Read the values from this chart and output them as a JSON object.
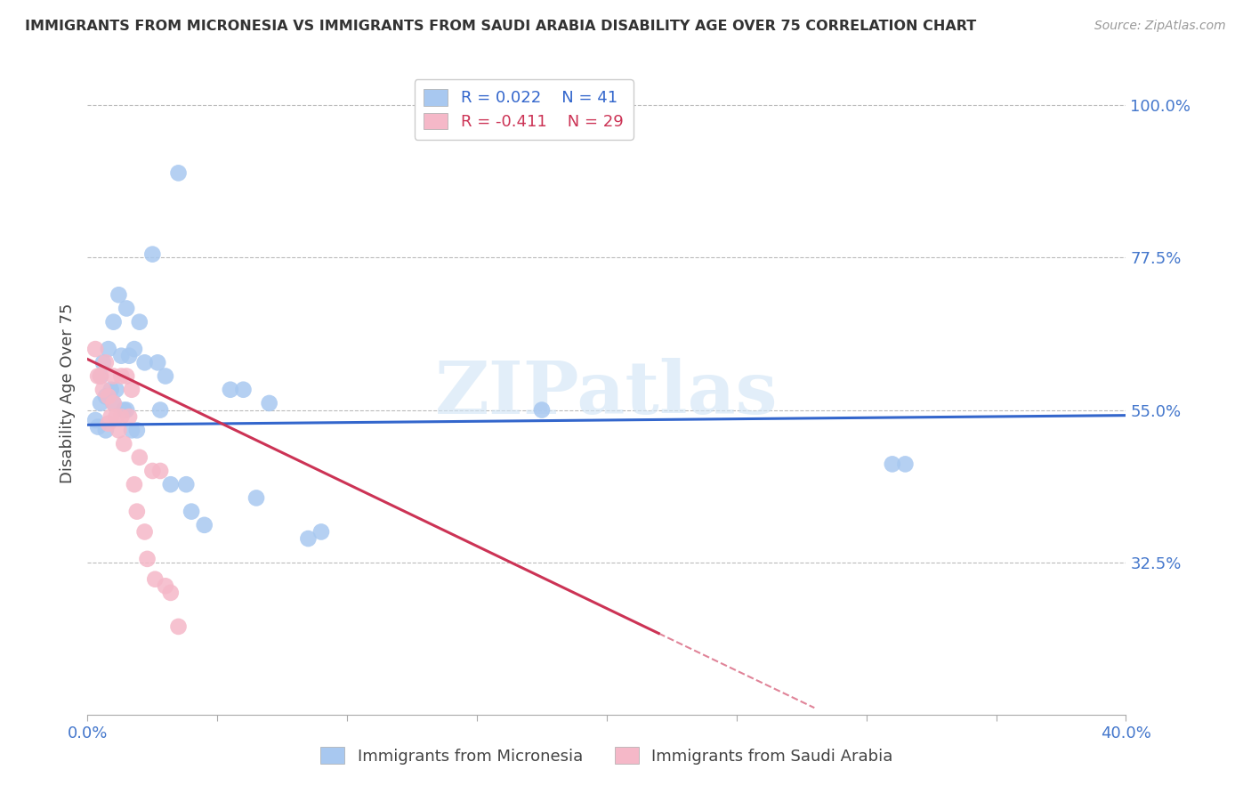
{
  "title": "IMMIGRANTS FROM MICRONESIA VS IMMIGRANTS FROM SAUDI ARABIA DISABILITY AGE OVER 75 CORRELATION CHART",
  "source": "Source: ZipAtlas.com",
  "ylabel": "Disability Age Over 75",
  "ytick_labels": [
    "100.0%",
    "77.5%",
    "55.0%",
    "32.5%"
  ],
  "ytick_values": [
    1.0,
    0.775,
    0.55,
    0.325
  ],
  "xlim": [
    0.0,
    0.4
  ],
  "ylim": [
    0.1,
    1.05
  ],
  "legend_blue_r": "R = 0.022",
  "legend_blue_n": "N = 41",
  "legend_pink_r": "R = -0.411",
  "legend_pink_n": "N = 29",
  "blue_color": "#A8C8F0",
  "pink_color": "#F5B8C8",
  "blue_line_color": "#3366CC",
  "pink_line_color": "#CC3355",
  "watermark": "ZIPatlas",
  "blue_points_x": [
    0.003,
    0.004,
    0.005,
    0.005,
    0.006,
    0.007,
    0.007,
    0.008,
    0.009,
    0.01,
    0.01,
    0.011,
    0.012,
    0.013,
    0.014,
    0.015,
    0.015,
    0.016,
    0.017,
    0.018,
    0.019,
    0.02,
    0.022,
    0.025,
    0.027,
    0.028,
    0.03,
    0.032,
    0.035,
    0.038,
    0.04,
    0.045,
    0.055,
    0.06,
    0.065,
    0.07,
    0.085,
    0.09,
    0.175,
    0.31,
    0.315
  ],
  "blue_points_y": [
    0.535,
    0.525,
    0.6,
    0.56,
    0.62,
    0.57,
    0.52,
    0.64,
    0.58,
    0.68,
    0.56,
    0.58,
    0.72,
    0.63,
    0.55,
    0.7,
    0.55,
    0.63,
    0.52,
    0.64,
    0.52,
    0.68,
    0.62,
    0.78,
    0.62,
    0.55,
    0.6,
    0.44,
    0.9,
    0.44,
    0.4,
    0.38,
    0.58,
    0.58,
    0.42,
    0.56,
    0.36,
    0.37,
    0.55,
    0.47,
    0.47
  ],
  "pink_points_x": [
    0.003,
    0.004,
    0.005,
    0.006,
    0.007,
    0.008,
    0.008,
    0.009,
    0.01,
    0.01,
    0.011,
    0.012,
    0.013,
    0.013,
    0.014,
    0.015,
    0.016,
    0.017,
    0.018,
    0.019,
    0.02,
    0.022,
    0.023,
    0.025,
    0.026,
    0.028,
    0.03,
    0.032,
    0.035
  ],
  "pink_points_y": [
    0.64,
    0.6,
    0.6,
    0.58,
    0.62,
    0.57,
    0.53,
    0.54,
    0.6,
    0.56,
    0.54,
    0.52,
    0.6,
    0.54,
    0.5,
    0.6,
    0.54,
    0.58,
    0.44,
    0.4,
    0.48,
    0.37,
    0.33,
    0.46,
    0.3,
    0.46,
    0.29,
    0.28,
    0.23
  ],
  "blue_line_x0": 0.0,
  "blue_line_x1": 0.4,
  "blue_line_y0": 0.528,
  "blue_line_y1": 0.542,
  "pink_line_solid_x0": 0.0,
  "pink_line_solid_x1": 0.22,
  "pink_line_solid_y0": 0.625,
  "pink_line_solid_y1": 0.22,
  "pink_line_dash_x0": 0.22,
  "pink_line_dash_x1": 0.28,
  "pink_line_dash_y0": 0.22,
  "pink_line_dash_y1": 0.11
}
